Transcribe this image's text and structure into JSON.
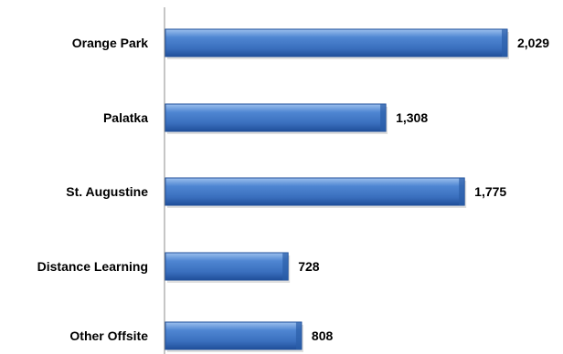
{
  "chart_data": {
    "type": "bar",
    "orientation": "horizontal",
    "categories": [
      "Orange Park",
      "Palatka",
      "St. Augustine",
      "Distance Learning",
      "Other Offsite"
    ],
    "values": [
      2029,
      1308,
      1775,
      728,
      808
    ],
    "value_labels": [
      "2,029",
      "1,308",
      "1,775",
      "728",
      "808"
    ],
    "xlim": [
      0,
      2029
    ],
    "grid": false,
    "legend": "none",
    "bar_color": "#3f76c4",
    "bar_color_light": "#8fb3e8",
    "bar_color_dark": "#1f4f9a",
    "axis_color": "#8c8c8c"
  }
}
